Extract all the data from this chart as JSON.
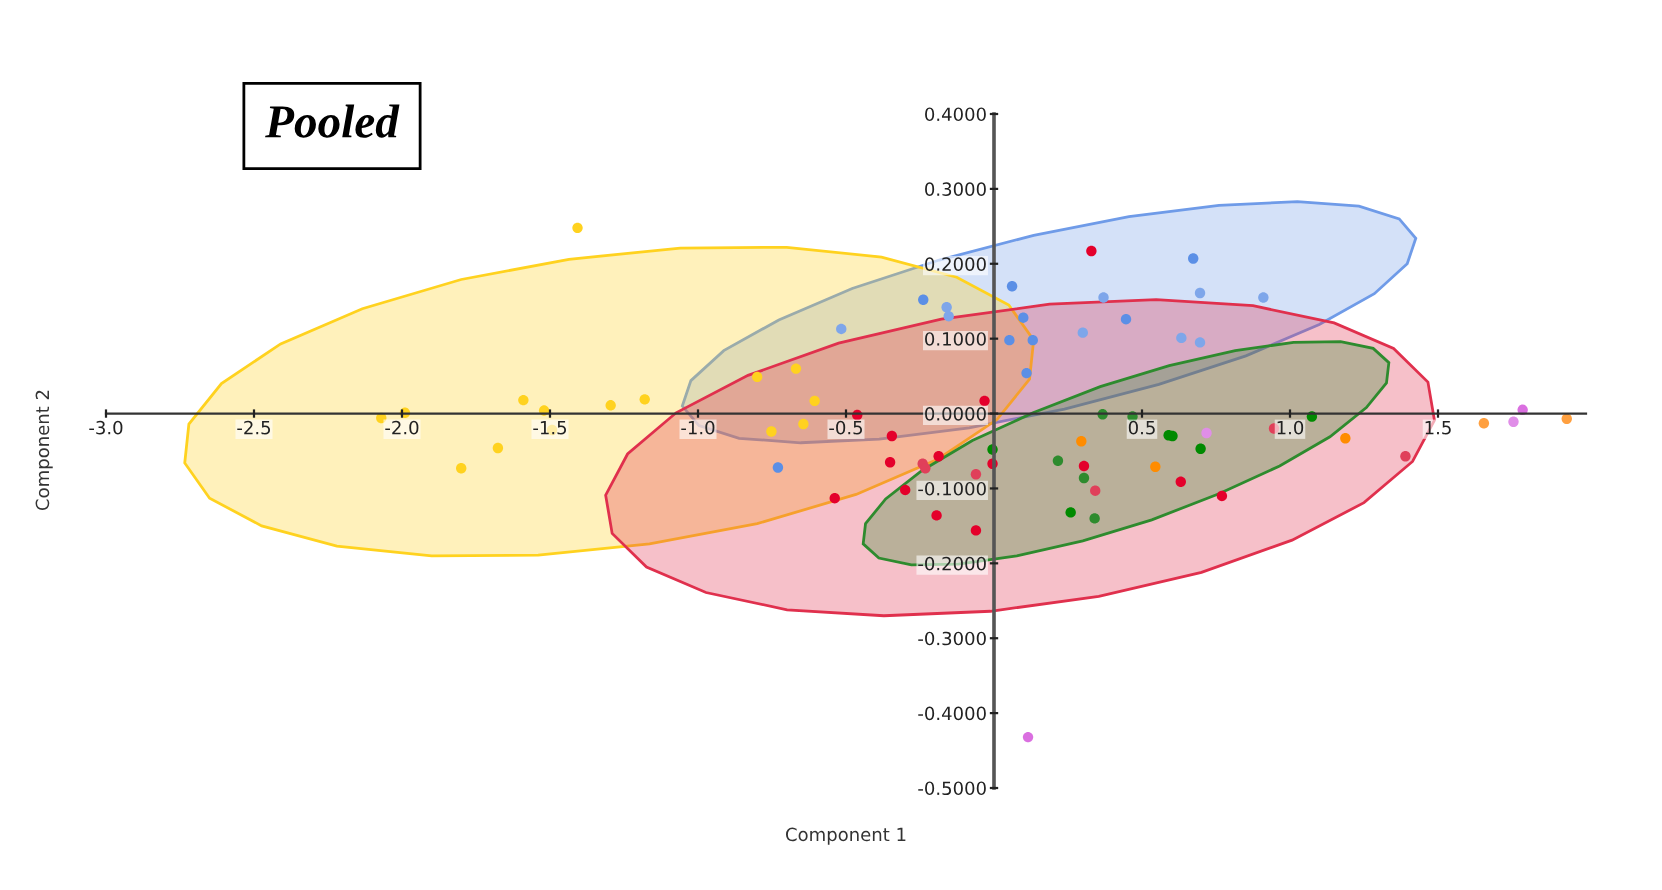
{
  "chart_data": {
    "type": "scatter",
    "title": "Pooled",
    "xlabel": "Component 1",
    "ylabel": "Component 2",
    "xlim": [
      -3.0,
      2.0
    ],
    "ylim": [
      -0.5,
      0.4
    ],
    "xticks": [
      {
        "value": -3.0,
        "label": "-3.0"
      },
      {
        "value": -2.5,
        "label": "-2.5"
      },
      {
        "value": -2.0,
        "label": "-2.0"
      },
      {
        "value": -1.5,
        "label": "-1.5"
      },
      {
        "value": -1.0,
        "label": "-1.0"
      },
      {
        "value": -0.5,
        "label": "-0.5"
      },
      {
        "value": 0.5,
        "label": "0.5"
      },
      {
        "value": 1.0,
        "label": "1.0"
      },
      {
        "value": 1.5,
        "label": "1.5"
      }
    ],
    "yticks": [
      {
        "value": 0.4,
        "label": "0.4000"
      },
      {
        "value": 0.3,
        "label": "0.3000"
      },
      {
        "value": 0.2,
        "label": "0.2000"
      },
      {
        "value": 0.1,
        "label": "0.1000"
      },
      {
        "value": 0,
        "label": "0.0000"
      },
      {
        "value": -0.1,
        "label": "-0.1000"
      },
      {
        "value": -0.2,
        "label": "-0.2000"
      },
      {
        "value": -0.3,
        "label": "-0.3000"
      },
      {
        "value": -0.4,
        "label": "-0.4000"
      },
      {
        "value": -0.5,
        "label": "-0.5000"
      }
    ],
    "grid": false,
    "legend": false,
    "marker": "circle",
    "series": [
      {
        "type": "area",
        "marker": "none",
        "color": "#6f9be8",
        "x": [
          1.396,
          1.425,
          1.369,
          1.233,
          1.025,
          0.76,
          0.456,
          0.134,
          -0.185,
          -0.479,
          -0.727,
          -0.913,
          -1.024,
          -1.053,
          -0.997,
          -0.861,
          -0.653,
          -0.388,
          -0.084,
          0.238,
          0.557,
          0.851,
          1.099,
          1.285
        ],
        "values": [
          0.2,
          0.234,
          0.26,
          0.277,
          0.283,
          0.278,
          0.263,
          0.238,
          0.205,
          0.167,
          0.125,
          0.084,
          0.044,
          0.01,
          -0.016,
          -0.033,
          -0.039,
          -0.034,
          -0.019,
          0.006,
          0.039,
          0.077,
          0.119,
          0.16
        ]
      },
      {
        "type": "area",
        "marker": "none",
        "color": "#ffd21f",
        "x": [
          0.12,
          0.134,
          0.05,
          -0.126,
          -0.38,
          -0.7,
          -1.06,
          -1.436,
          -1.8,
          -2.134,
          -2.41,
          -2.61,
          -2.72,
          -2.734,
          -2.65,
          -2.474,
          -2.22,
          -1.9,
          -1.54,
          -1.164,
          -0.8,
          -0.466,
          -0.19,
          0.01
        ],
        "values": [
          0.046,
          0.098,
          0.145,
          0.182,
          0.209,
          0.222,
          0.221,
          0.206,
          0.179,
          0.14,
          0.093,
          0.04,
          -0.014,
          -0.066,
          -0.113,
          -0.15,
          -0.177,
          -0.19,
          -0.189,
          -0.174,
          -0.147,
          -0.108,
          -0.061,
          -0.008
        ]
      },
      {
        "type": "area",
        "marker": "none",
        "color": "#e0304d",
        "x": [
          1.488,
          1.466,
          1.35,
          1.149,
          0.875,
          0.548,
          0.188,
          -0.178,
          -0.525,
          -0.831,
          -1.074,
          -1.238,
          -1.312,
          -1.29,
          -1.174,
          -0.973,
          -0.699,
          -0.372,
          -0.012,
          0.354,
          0.701,
          1.007,
          1.25,
          1.414
        ],
        "values": [
          -0.009,
          0.042,
          0.087,
          0.121,
          0.144,
          0.152,
          0.146,
          0.126,
          0.094,
          0.051,
          0.001,
          -0.054,
          -0.109,
          -0.16,
          -0.205,
          -0.239,
          -0.262,
          -0.27,
          -0.264,
          -0.244,
          -0.212,
          -0.169,
          -0.119,
          -0.064
        ]
      },
      {
        "type": "area",
        "marker": "none",
        "color": "#2e8b2e",
        "x": [
          1.326,
          1.334,
          1.281,
          1.171,
          1.012,
          0.815,
          0.592,
          0.359,
          0.132,
          -0.073,
          -0.243,
          -0.366,
          -0.434,
          -0.442,
          -0.389,
          -0.279,
          -0.12,
          0.077,
          0.3,
          0.533,
          0.76,
          0.965,
          1.135,
          1.258
        ],
        "values": [
          0.041,
          0.068,
          0.087,
          0.096,
          0.095,
          0.084,
          0.064,
          0.036,
          0.001,
          -0.036,
          -0.076,
          -0.114,
          -0.147,
          -0.174,
          -0.193,
          -0.202,
          -0.201,
          -0.19,
          -0.17,
          -0.142,
          -0.107,
          -0.07,
          -0.031,
          0.008
        ]
      },
      {
        "color": "#ffd21f",
        "x": [
          -1.407,
          -2.07,
          -1.676,
          -1.493,
          -0.669,
          -0.606
        ],
        "values": [
          0.248,
          -0.006,
          -0.046,
          -0.022,
          0.06,
          0.017
        ]
      },
      {
        "color": "#ffd21f",
        "x": [
          -1.99,
          -1.8,
          -1.59,
          -1.52,
          -1.295,
          -1.18,
          -0.8,
          -0.752,
          -0.644
        ],
        "values": [
          0.001,
          -0.073,
          0.018,
          0.004,
          0.011,
          0.019,
          0.049,
          -0.024,
          -0.014
        ]
      },
      {
        "color": "#5b8fe6",
        "x": [
          -0.73,
          -0.239,
          0.061,
          0.099,
          0.052,
          0.131,
          0.11,
          0.446,
          0.673
        ],
        "values": [
          -0.072,
          0.152,
          0.17,
          0.128,
          0.098,
          0.098,
          0.054,
          0.126,
          0.207
        ]
      },
      {
        "color": "#7ea6ea",
        "x": [
          -0.516,
          -0.16,
          -0.153,
          0.3,
          0.37,
          0.696,
          0.91,
          0.633,
          0.696
        ],
        "values": [
          0.113,
          0.142,
          0.13,
          0.108,
          0.155,
          0.161,
          0.155,
          0.101,
          0.095
        ]
      },
      {
        "color": "#e4002b",
        "x": [
          -0.462,
          -0.345,
          -0.351,
          -0.538,
          0.329,
          -0.032,
          -0.187,
          -0.3,
          -0.194,
          -0.061,
          -0.005,
          0.304,
          0.631,
          0.77
        ],
        "values": [
          -0.002,
          -0.03,
          -0.065,
          -0.113,
          0.217,
          0.017,
          -0.057,
          -0.102,
          -0.136,
          -0.156,
          -0.067,
          -0.07,
          -0.091,
          -0.11
        ]
      },
      {
        "color": "#e0405a",
        "x": [
          -0.241,
          -0.232,
          -0.061,
          0.342,
          0.946,
          1.39
        ],
        "values": [
          -0.067,
          -0.073,
          -0.081,
          -0.103,
          -0.02,
          -0.057
        ]
      },
      {
        "color": "#008a00",
        "x": [
          -0.005,
          0.59,
          0.603,
          0.698,
          1.074,
          0.259
        ],
        "values": [
          -0.048,
          -0.029,
          -0.03,
          -0.047,
          -0.004,
          -0.132
        ]
      },
      {
        "color": "#2e8b2e",
        "x": [
          0.367,
          0.468,
          0.216,
          0.304,
          0.34
        ],
        "values": [
          -0.001,
          -0.004,
          -0.063,
          -0.086,
          -0.14
        ]
      },
      {
        "color": "#ff8c00",
        "x": [
          0.295,
          0.545,
          1.187
        ],
        "values": [
          -0.037,
          -0.071,
          -0.033
        ]
      },
      {
        "color": "#ffa040",
        "x": [
          1.655,
          1.935
        ],
        "values": [
          -0.013,
          -0.007
        ]
      },
      {
        "color": "#da6fe0",
        "x": [
          1.786,
          0.115
        ],
        "values": [
          0.005,
          -0.432
        ]
      },
      {
        "color": "#e08ee8",
        "x": [
          0.718,
          1.755
        ],
        "values": [
          -0.026,
          -0.011
        ]
      }
    ]
  }
}
